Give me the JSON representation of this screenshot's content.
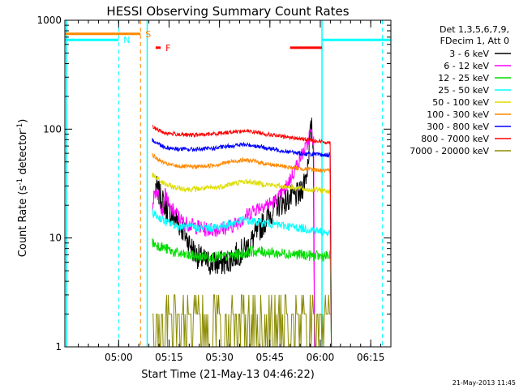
{
  "chart_data": {
    "type": "line",
    "title": "HESSI Observing Summary Count Rates",
    "xlabel": "Start Time (21-May-13 04:46:22)",
    "ylabel": "Count Rate (s⁻¹ detector⁻¹)",
    "ylabel_parts": {
      "pre": "Count Rate (s",
      "sup1": "-1",
      "mid": " detector",
      "sup2": "-1",
      "post": ")"
    },
    "y_scale": "log",
    "ylim": [
      1,
      1000
    ],
    "y_ticks": [
      {
        "value": 1,
        "label": "1"
      },
      {
        "value": 10,
        "label": "10"
      },
      {
        "value": 100,
        "label": "100"
      },
      {
        "value": 1000,
        "label": "1000"
      }
    ],
    "xlim_minutes": [
      -2,
      95
    ],
    "x_ticks": [
      {
        "label": "05:00",
        "t": 14
      },
      {
        "label": "05:15",
        "t": 29
      },
      {
        "label": "05:30",
        "t": 44
      },
      {
        "label": "05:45",
        "t": 59
      },
      {
        "label": "06:00",
        "t": 74
      },
      {
        "label": "06:15",
        "t": 89
      }
    ],
    "legend_header": [
      "Det 1,3,5,6,7,9,",
      "FDecim 1, Att 0"
    ],
    "legend_position": "right",
    "series": [
      {
        "name": "3 - 6 keV",
        "color": "#000000",
        "key": "x",
        "points": [
          [
            25,
            30
          ],
          [
            27,
            22
          ],
          [
            29,
            17
          ],
          [
            31,
            15
          ],
          [
            33,
            12
          ],
          [
            35,
            9
          ],
          [
            37,
            7
          ],
          [
            40,
            6
          ],
          [
            43,
            5.8
          ],
          [
            46,
            6
          ],
          [
            49,
            7
          ],
          [
            52,
            8
          ],
          [
            55,
            11
          ],
          [
            58,
            15
          ],
          [
            61,
            20
          ],
          [
            64,
            22
          ],
          [
            66,
            24
          ],
          [
            68,
            25
          ],
          [
            70,
            40
          ],
          [
            71,
            90
          ],
          [
            71.5,
            100
          ],
          [
            72,
            60
          ]
        ]
      },
      {
        "name": "6 - 12 keV",
        "color": "#ff00ff",
        "key": "x",
        "points": [
          [
            24,
            20
          ],
          [
            25,
            28
          ],
          [
            26,
            24
          ],
          [
            27,
            18
          ],
          [
            28,
            26
          ],
          [
            29,
            19
          ],
          [
            31,
            17
          ],
          [
            33,
            14
          ],
          [
            36,
            13
          ],
          [
            40,
            12
          ],
          [
            44,
            12
          ],
          [
            48,
            13
          ],
          [
            51,
            15
          ],
          [
            54,
            18
          ],
          [
            57,
            20
          ],
          [
            60,
            21
          ],
          [
            62,
            24
          ],
          [
            64,
            30
          ],
          [
            66,
            40
          ],
          [
            68,
            55
          ],
          [
            70,
            70
          ],
          [
            71,
            95
          ],
          [
            72,
            80
          ]
        ]
      },
      {
        "name": "12 - 25 keV",
        "color": "#00dd00",
        "key": "x",
        "points": [
          [
            24,
            9
          ],
          [
            26,
            8.5
          ],
          [
            28,
            8
          ],
          [
            30,
            7.5
          ],
          [
            33,
            7
          ],
          [
            37,
            6.8
          ],
          [
            41,
            6.7
          ],
          [
            45,
            6.7
          ],
          [
            49,
            7
          ],
          [
            53,
            7.5
          ],
          [
            57,
            7.5
          ],
          [
            61,
            7.2
          ],
          [
            65,
            7.2
          ],
          [
            69,
            7
          ],
          [
            73,
            6.8
          ],
          [
            77,
            6.8
          ]
        ]
      },
      {
        "name": "25 - 50 keV",
        "color": "#00ffff",
        "key": "x",
        "points": [
          [
            24,
            17
          ],
          [
            26,
            15.5
          ],
          [
            28,
            14
          ],
          [
            31,
            13
          ],
          [
            35,
            12.5
          ],
          [
            39,
            12.3
          ],
          [
            43,
            12.5
          ],
          [
            47,
            13.5
          ],
          [
            51,
            14.5
          ],
          [
            55,
            14
          ],
          [
            59,
            13.5
          ],
          [
            63,
            13
          ],
          [
            67,
            12.5
          ],
          [
            71,
            12
          ],
          [
            74,
            11.5
          ],
          [
            77,
            11
          ]
        ]
      },
      {
        "name": "50 - 100 keV",
        "color": "#dddd00",
        "key": "x",
        "points": [
          [
            24,
            38
          ],
          [
            26,
            34
          ],
          [
            28,
            31
          ],
          [
            31,
            29
          ],
          [
            35,
            28
          ],
          [
            39,
            28.5
          ],
          [
            43,
            29
          ],
          [
            47,
            31
          ],
          [
            51,
            33
          ],
          [
            54,
            32.5
          ],
          [
            58,
            31
          ],
          [
            62,
            30
          ],
          [
            66,
            29
          ],
          [
            70,
            28
          ],
          [
            74,
            27.5
          ],
          [
            77,
            27
          ]
        ]
      },
      {
        "name": "100 - 300 keV",
        "color": "#ff8800",
        "key": "x",
        "points": [
          [
            24,
            58
          ],
          [
            26,
            52
          ],
          [
            28,
            48
          ],
          [
            31,
            46
          ],
          [
            35,
            45
          ],
          [
            39,
            45.5
          ],
          [
            43,
            47
          ],
          [
            47,
            50
          ],
          [
            51,
            52
          ],
          [
            54,
            51
          ],
          [
            58,
            48
          ],
          [
            62,
            46
          ],
          [
            66,
            44
          ],
          [
            70,
            43
          ],
          [
            74,
            42
          ],
          [
            77,
            41
          ]
        ]
      },
      {
        "name": "300 - 800 keV",
        "color": "#0000ff",
        "key": "x",
        "points": [
          [
            24,
            80
          ],
          [
            26,
            73
          ],
          [
            28,
            68
          ],
          [
            31,
            66
          ],
          [
            35,
            65
          ],
          [
            39,
            65.5
          ],
          [
            43,
            67
          ],
          [
            47,
            70
          ],
          [
            51,
            72
          ],
          [
            54,
            71
          ],
          [
            58,
            67
          ],
          [
            62,
            64
          ],
          [
            66,
            61
          ],
          [
            70,
            59
          ],
          [
            74,
            58
          ],
          [
            77,
            58
          ]
        ]
      },
      {
        "name": "800 - 7000 keV",
        "color": "#ff0000",
        "key": "x",
        "points": [
          [
            24,
            105
          ],
          [
            26,
            97
          ],
          [
            28,
            92
          ],
          [
            31,
            90
          ],
          [
            35,
            88
          ],
          [
            39,
            89
          ],
          [
            43,
            91
          ],
          [
            47,
            94
          ],
          [
            51,
            96
          ],
          [
            54,
            95
          ],
          [
            58,
            90
          ],
          [
            62,
            86
          ],
          [
            66,
            83
          ],
          [
            70,
            80
          ],
          [
            74,
            77
          ],
          [
            77,
            75
          ]
        ]
      },
      {
        "name": "7000 - 20000 keV",
        "color": "#8b8b00",
        "key": "x",
        "points": [
          [
            24,
            2
          ],
          [
            36,
            2
          ],
          [
            44,
            2
          ],
          [
            52,
            2
          ],
          [
            60,
            2
          ],
          [
            68,
            2
          ],
          [
            77,
            2
          ]
        ]
      }
    ],
    "state_bars": [
      {
        "label": "S",
        "color": "#ff8800",
        "t_start": -2,
        "t_end": 20.5,
        "value": 750
      },
      {
        "label": "N",
        "color": "#00ffff",
        "t_start": -2,
        "t_end": 14,
        "value": 660
      },
      {
        "label": "F",
        "color": "#ff0000",
        "t_start": 25,
        "t_end": 26.5,
        "value": 560
      },
      {
        "label": "",
        "color": "#ff0000",
        "t_start": 65,
        "t_end": 74.5,
        "value": 560
      },
      {
        "label": "",
        "color": "#00ffff",
        "t_start": 74.5,
        "t_end": 95,
        "value": 660
      }
    ],
    "dashed_vlines": [
      {
        "t": 14,
        "color": "#00ffff"
      },
      {
        "t": 20.5,
        "color": "#ff8800"
      },
      {
        "t": 92.5,
        "color": "#00ffff"
      }
    ],
    "solid_vlines": [
      {
        "t": -1.5,
        "color": "#00ffff"
      },
      {
        "t": 22.5,
        "color": "#00ffff"
      },
      {
        "t": 74.5,
        "color": "#00ffff"
      }
    ],
    "data_window": [
      24,
      77.8
    ],
    "footer_timestamp": "21-May-2013 11:45"
  }
}
